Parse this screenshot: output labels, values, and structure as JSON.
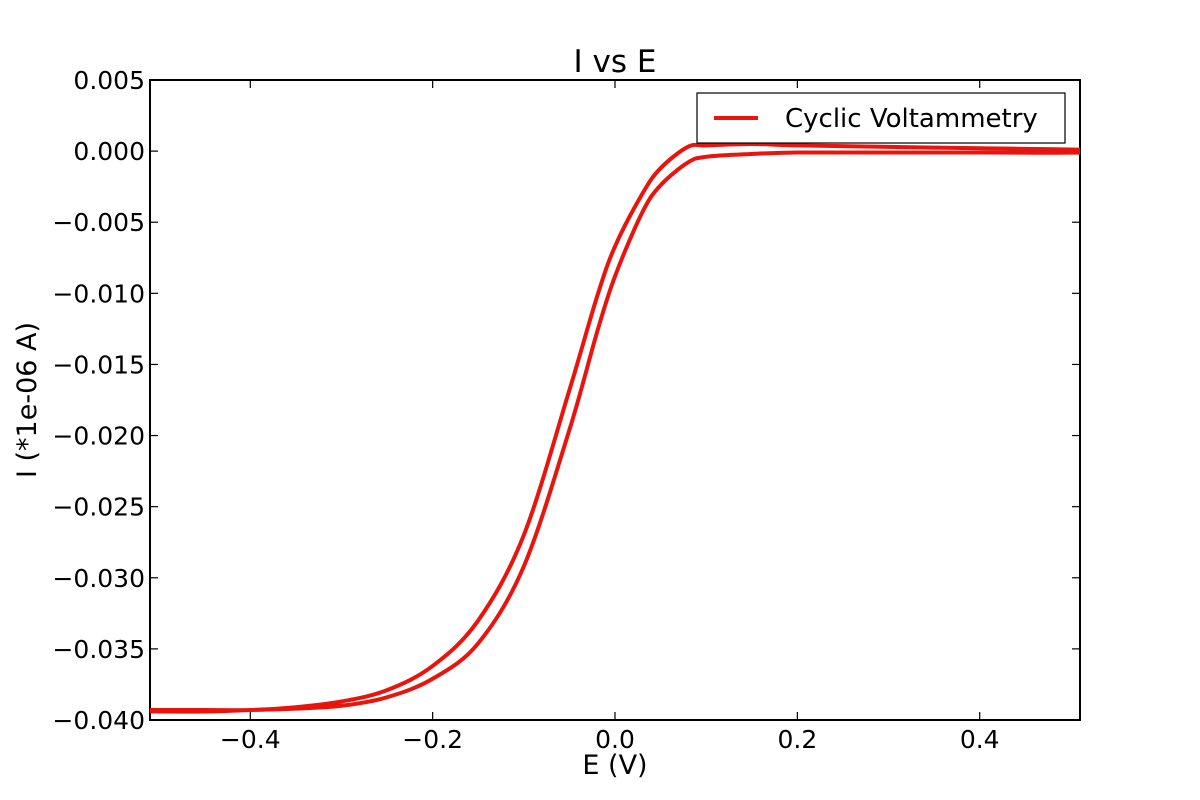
{
  "chart_data": {
    "type": "line",
    "title": "I vs E",
    "xlabel": "E (V)",
    "ylabel": "I (*1e-06 A)",
    "xlim": [
      -0.51,
      0.51
    ],
    "ylim": [
      -0.04,
      0.005
    ],
    "x_ticks": [
      -0.4,
      -0.2,
      0.0,
      0.2,
      0.4
    ],
    "x_tick_labels": [
      "−0.4",
      "−0.2",
      "0.0",
      "0.2",
      "0.4"
    ],
    "y_ticks": [
      0.005,
      0.0,
      -0.005,
      -0.01,
      -0.015,
      -0.02,
      -0.025,
      -0.03,
      -0.035,
      -0.04
    ],
    "y_tick_labels": [
      "0.005",
      "0.000",
      "−0.005",
      "−0.010",
      "−0.015",
      "−0.020",
      "−0.025",
      "−0.030",
      "−0.035",
      "−0.040"
    ],
    "grid": false,
    "legend": {
      "position": "top-right",
      "entries": [
        "Cyclic Voltammetry"
      ]
    },
    "series": [
      {
        "name": "Cyclic Voltammetry",
        "color": "#e8140e",
        "x": [
          -0.51,
          -0.45,
          -0.4,
          -0.35,
          -0.3,
          -0.25,
          -0.2,
          -0.15,
          -0.1,
          -0.05,
          -0.02,
          0.0,
          0.03,
          0.05,
          0.08,
          0.1,
          0.15,
          0.2,
          0.3,
          0.4,
          0.51,
          0.51,
          0.4,
          0.3,
          0.2,
          0.15,
          0.1,
          0.08,
          0.05,
          0.03,
          0.0,
          -0.02,
          -0.05,
          -0.1,
          -0.15,
          -0.2,
          -0.25,
          -0.3,
          -0.35,
          -0.4,
          -0.45,
          -0.51
        ],
        "y": [
          -0.0394,
          -0.0394,
          -0.0393,
          -0.0392,
          -0.039,
          -0.0384,
          -0.0371,
          -0.0346,
          -0.0292,
          -0.0196,
          -0.0128,
          -0.0088,
          -0.0043,
          -0.0024,
          -0.0008,
          -0.0004,
          -0.0002,
          -0.0001,
          -0.0001,
          -0.0001,
          -0.0001,
          0.0001,
          0.0002,
          0.0003,
          0.0004,
          0.0005,
          0.0004,
          0.0003,
          -0.0012,
          -0.003,
          -0.0067,
          -0.0103,
          -0.0168,
          -0.027,
          -0.033,
          -0.0362,
          -0.0379,
          -0.0387,
          -0.0391,
          -0.0393,
          -0.0393,
          -0.0393
        ]
      }
    ]
  }
}
